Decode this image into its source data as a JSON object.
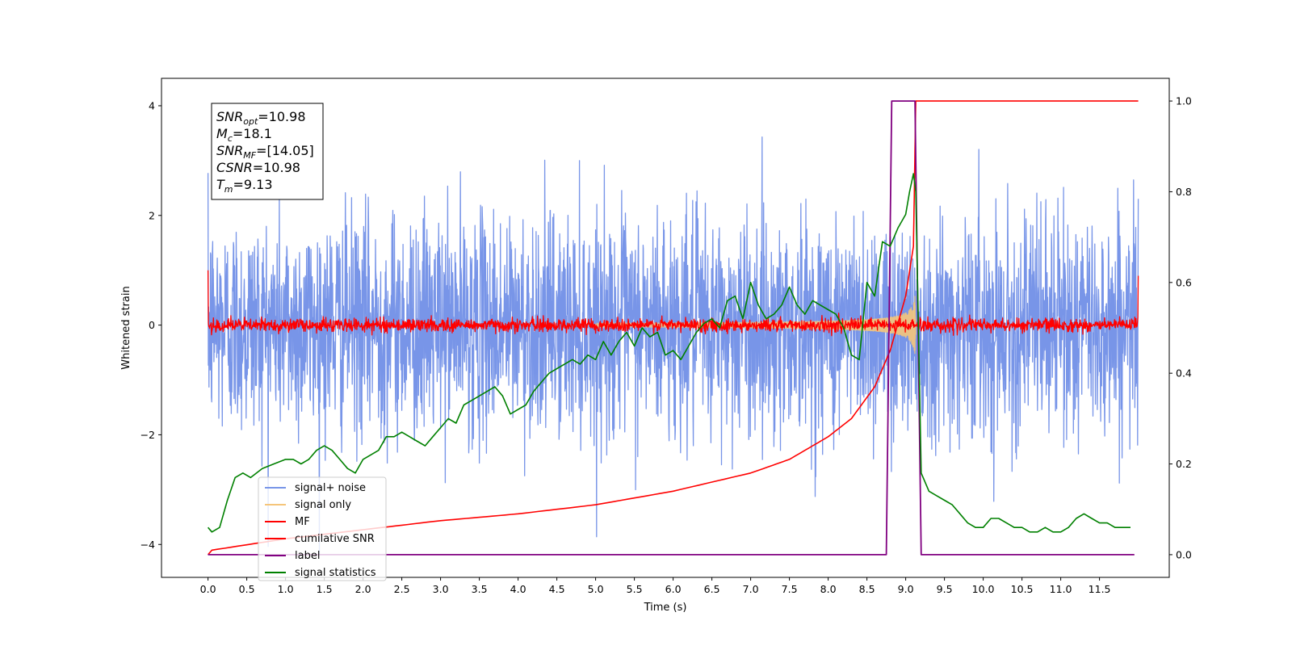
{
  "chart_data": {
    "type": "line",
    "xlabel": "Time (s)",
    "ylabel": "Whitened strain",
    "xlim": [
      -0.6,
      12.4
    ],
    "ylim": [
      -4.6,
      4.5
    ],
    "y2lim": [
      -0.05,
      1.05
    ],
    "xticks": [
      "0.0",
      "0.5",
      "1.0",
      "1.5",
      "2.0",
      "2.5",
      "3.0",
      "3.5",
      "4.0",
      "4.5",
      "5.0",
      "5.5",
      "6.0",
      "6.5",
      "7.0",
      "7.5",
      "8.0",
      "8.5",
      "9.0",
      "9.5",
      "10.0",
      "10.5",
      "11.0",
      "11.5"
    ],
    "yticks": [
      "4",
      "2",
      "0",
      "−2",
      "−4"
    ],
    "y2ticks": [
      "1.0",
      "0.8",
      "0.6",
      "0.4",
      "0.2",
      "0.0"
    ],
    "legend_position": "lower-left",
    "info_box": {
      "snr_opt": {
        "base": "SNR",
        "sub": "opt",
        "value": "=10.98"
      },
      "mc": {
        "base": "M",
        "sub": "c",
        "value": "=18.1"
      },
      "snr_mf": {
        "base": "SNR",
        "sub": "MF",
        "value": "=[14.05]"
      },
      "csnr": {
        "base": "CSNR",
        "sub": "",
        "value": "=10.98"
      },
      "tm": {
        "base": "T",
        "sub": "m",
        "value": "=9.13"
      }
    },
    "series": [
      {
        "name": "signal+ noise",
        "color": "#7895e8",
        "axis": "left",
        "kind": "noise",
        "sigma": 1.0,
        "x_start": 0.0,
        "x_end": 12.0
      },
      {
        "name": "signal only",
        "color": "#f5c57a",
        "axis": "left",
        "kind": "chirp",
        "merger_time": 9.13
      },
      {
        "name": "MF",
        "color": "#ff0000",
        "axis": "left",
        "kind": "mf_noise",
        "sigma": 0.06
      },
      {
        "name": "cumilative SNR",
        "color": "#ff0000",
        "axis": "right",
        "x": [
          0.0,
          0.05,
          1.0,
          2.0,
          3.0,
          4.0,
          5.0,
          6.0,
          7.0,
          7.5,
          8.0,
          8.3,
          8.6,
          8.8,
          9.0,
          9.1,
          9.13,
          12.0
        ],
        "values": [
          0.0,
          0.01,
          0.035,
          0.055,
          0.075,
          0.09,
          0.11,
          0.14,
          0.18,
          0.21,
          0.26,
          0.3,
          0.37,
          0.45,
          0.57,
          0.68,
          1.0,
          1.0
        ]
      },
      {
        "name": "label",
        "color": "#800080",
        "axis": "right",
        "x": [
          0.0,
          8.75,
          8.82,
          9.12,
          9.2,
          11.95
        ],
        "values": [
          0.0,
          0.0,
          1.0,
          1.0,
          0.0,
          0.0
        ]
      },
      {
        "name": "signal statistics",
        "color": "#008000",
        "axis": "right",
        "x": [
          0.0,
          0.05,
          0.15,
          0.25,
          0.35,
          0.45,
          0.55,
          0.7,
          0.85,
          1.0,
          1.1,
          1.2,
          1.3,
          1.4,
          1.5,
          1.6,
          1.7,
          1.8,
          1.9,
          2.0,
          2.1,
          2.2,
          2.3,
          2.4,
          2.5,
          2.6,
          2.7,
          2.8,
          2.9,
          3.0,
          3.1,
          3.2,
          3.3,
          3.4,
          3.5,
          3.6,
          3.7,
          3.8,
          3.9,
          4.0,
          4.1,
          4.2,
          4.3,
          4.4,
          4.5,
          4.6,
          4.7,
          4.8,
          4.9,
          5.0,
          5.1,
          5.2,
          5.3,
          5.4,
          5.5,
          5.6,
          5.7,
          5.8,
          5.9,
          6.0,
          6.1,
          6.2,
          6.3,
          6.4,
          6.5,
          6.6,
          6.7,
          6.8,
          6.9,
          7.0,
          7.1,
          7.2,
          7.3,
          7.4,
          7.5,
          7.6,
          7.7,
          7.8,
          7.9,
          8.0,
          8.1,
          8.2,
          8.3,
          8.4,
          8.5,
          8.6,
          8.7,
          8.8,
          8.9,
          9.0,
          9.05,
          9.1,
          9.13,
          9.2,
          9.3,
          9.4,
          9.5,
          9.6,
          9.7,
          9.8,
          9.9,
          10.0,
          10.1,
          10.2,
          10.3,
          10.4,
          10.5,
          10.6,
          10.7,
          10.8,
          10.9,
          11.0,
          11.1,
          11.2,
          11.3,
          11.4,
          11.5,
          11.6,
          11.7,
          11.8,
          11.9
        ],
        "values": [
          0.06,
          0.05,
          0.06,
          0.12,
          0.17,
          0.18,
          0.17,
          0.19,
          0.2,
          0.21,
          0.21,
          0.2,
          0.21,
          0.23,
          0.24,
          0.23,
          0.21,
          0.19,
          0.18,
          0.21,
          0.22,
          0.23,
          0.26,
          0.26,
          0.27,
          0.26,
          0.25,
          0.24,
          0.26,
          0.28,
          0.3,
          0.29,
          0.33,
          0.34,
          0.35,
          0.36,
          0.37,
          0.35,
          0.31,
          0.32,
          0.33,
          0.36,
          0.38,
          0.4,
          0.41,
          0.42,
          0.43,
          0.42,
          0.44,
          0.43,
          0.47,
          0.44,
          0.47,
          0.49,
          0.46,
          0.5,
          0.48,
          0.49,
          0.44,
          0.45,
          0.43,
          0.46,
          0.49,
          0.51,
          0.52,
          0.5,
          0.56,
          0.57,
          0.52,
          0.6,
          0.55,
          0.52,
          0.53,
          0.55,
          0.59,
          0.55,
          0.53,
          0.56,
          0.55,
          0.54,
          0.53,
          0.5,
          0.44,
          0.43,
          0.6,
          0.57,
          0.69,
          0.68,
          0.72,
          0.75,
          0.8,
          0.84,
          0.8,
          0.18,
          0.14,
          0.13,
          0.12,
          0.11,
          0.09,
          0.07,
          0.06,
          0.06,
          0.08,
          0.08,
          0.07,
          0.06,
          0.06,
          0.05,
          0.05,
          0.06,
          0.05,
          0.05,
          0.06,
          0.08,
          0.09,
          0.08,
          0.07,
          0.07,
          0.06,
          0.06,
          0.06
        ]
      }
    ]
  }
}
